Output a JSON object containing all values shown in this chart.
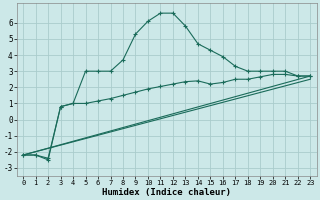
{
  "xlabel": "Humidex (Indice chaleur)",
  "background_color": "#cce8e8",
  "grid_color": "#aacccc",
  "line_color": "#1a6b5a",
  "xlim": [
    -0.5,
    23.5
  ],
  "ylim": [
    -3.5,
    7.2
  ],
  "yticks": [
    -3,
    -2,
    -1,
    0,
    1,
    2,
    3,
    4,
    5,
    6
  ],
  "xticks": [
    0,
    1,
    2,
    3,
    4,
    5,
    6,
    7,
    8,
    9,
    10,
    11,
    12,
    13,
    14,
    15,
    16,
    17,
    18,
    19,
    20,
    21,
    22,
    23
  ],
  "line1_x": [
    0,
    1,
    2,
    3,
    4,
    5,
    6,
    7,
    8,
    9,
    10,
    11,
    12,
    13,
    14,
    15,
    16,
    17,
    18,
    19,
    20,
    21,
    22,
    23
  ],
  "line1_y": [
    -2.2,
    -2.2,
    -2.4,
    0.8,
    1.0,
    3.0,
    3.0,
    3.0,
    3.7,
    5.3,
    6.1,
    6.6,
    6.6,
    5.8,
    4.7,
    4.3,
    3.9,
    3.3,
    3.0,
    3.0,
    3.0,
    3.0,
    2.7,
    2.7
  ],
  "line2_x": [
    0,
    1,
    2,
    3,
    4,
    5,
    6,
    7,
    8,
    9,
    10,
    11,
    12,
    13,
    14,
    15,
    16,
    17,
    18,
    19,
    20,
    21,
    22,
    23
  ],
  "line2_y": [
    -2.2,
    -2.2,
    -2.5,
    0.8,
    1.0,
    1.0,
    1.15,
    1.3,
    1.5,
    1.7,
    1.9,
    2.05,
    2.2,
    2.35,
    2.4,
    2.2,
    2.3,
    2.5,
    2.5,
    2.65,
    2.8,
    2.8,
    2.7,
    2.7
  ],
  "line3_x": [
    0,
    23
  ],
  "line3_y": [
    -2.2,
    2.7
  ],
  "line4_x": [
    0,
    23
  ],
  "line4_y": [
    -2.2,
    2.5
  ]
}
